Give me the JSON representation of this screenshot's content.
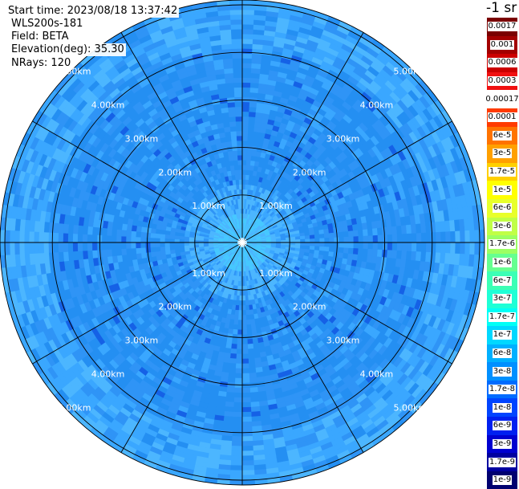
{
  "info": {
    "start_time": "Start time: 2023/08/18 13:37:42",
    "device": "WLS200s-181",
    "field": "Field: BETA",
    "elevation": "Elevation(deg): 35.30",
    "nrays": "NRays: 120"
  },
  "units_label": "-1 sr",
  "ring_labels": [
    "1.00km",
    "2.00km",
    "3.00km",
    "4.00km",
    "5.00km"
  ],
  "legend": [
    {
      "label": "0.0017",
      "color": "#7a0000"
    },
    {
      "label": "0.001",
      "color": "#a30000"
    },
    {
      "label": "0.0006",
      "color": "#cc0000"
    },
    {
      "label": "0.0003",
      "color": "#f01010"
    },
    {
      "label": "0.00017",
      "color": "#ffffff"
    },
    {
      "label": "0.0001",
      "color": "#ff3b00"
    },
    {
      "label": "6e-5",
      "color": "#ff7300"
    },
    {
      "label": "3e-5",
      "color": "#ffa000"
    },
    {
      "label": "1.7e-5",
      "color": "#ffd000"
    },
    {
      "label": "1e-5",
      "color": "#ffff00"
    },
    {
      "label": "6e-6",
      "color": "#e8ff2a"
    },
    {
      "label": "3e-6",
      "color": "#c0ff46"
    },
    {
      "label": "1.7e-6",
      "color": "#9cff62"
    },
    {
      "label": "1e-6",
      "color": "#66ff90"
    },
    {
      "label": "6e-7",
      "color": "#3cffb5"
    },
    {
      "label": "3e-7",
      "color": "#1effd6"
    },
    {
      "label": "1.7e-7",
      "color": "#00fff6"
    },
    {
      "label": "1e-7",
      "color": "#00d8ff"
    },
    {
      "label": "6e-8",
      "color": "#00b0ff"
    },
    {
      "label": "3e-8",
      "color": "#0090ff"
    },
    {
      "label": "1.7e-8",
      "color": "#006cff"
    },
    {
      "label": "1e-8",
      "color": "#0044ff"
    },
    {
      "label": "6e-9",
      "color": "#0020f0"
    },
    {
      "label": "3e-9",
      "color": "#0000d0"
    },
    {
      "label": "1.7e-9",
      "color": "#0000a0"
    },
    {
      "label": "1e-9",
      "color": "#000070"
    }
  ],
  "display": {
    "ppi_colors": [
      "#3aa7ff",
      "#2f94f6",
      "#248ff2",
      "#1b82ea",
      "#4cb6ff",
      "#46c8ff",
      "#1561e6"
    ],
    "ring_line_color": "#000000"
  }
}
